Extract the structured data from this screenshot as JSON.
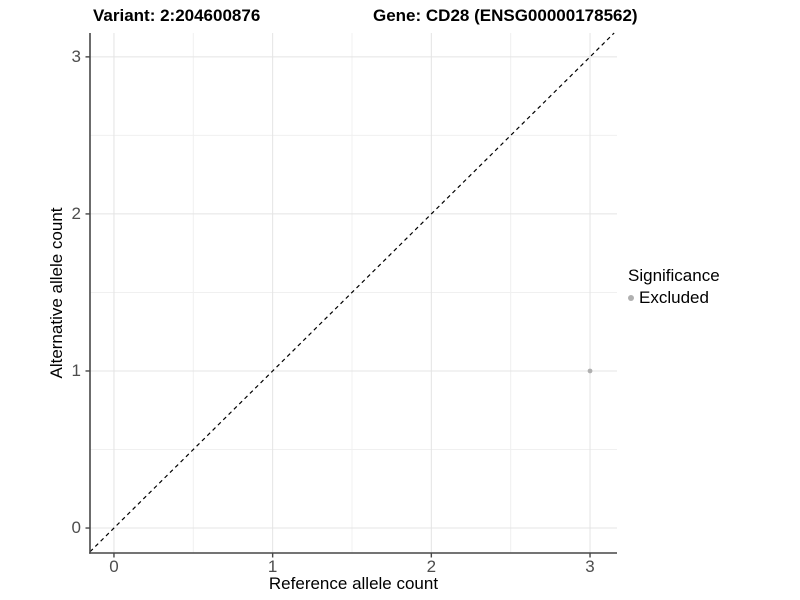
{
  "header": {
    "variant_title": "Variant: 2:204600876",
    "gene_title": "Gene: CD28 (ENSG00000178562)"
  },
  "chart_data": {
    "type": "scatter",
    "xlabel": "Reference allele count",
    "ylabel": "Alternative allele count",
    "xlim": [
      -0.151,
      3.17
    ],
    "ylim": [
      -0.159,
      3.152
    ],
    "x_ticks": [
      0,
      1,
      2,
      3
    ],
    "y_ticks": [
      0,
      1,
      2,
      3
    ],
    "x_minor_ticks": [
      0.5,
      1.5,
      2.5
    ],
    "y_minor_ticks": [
      0.5,
      1.5,
      2.5
    ],
    "grid": "major+minor",
    "reference_line": {
      "type": "identity",
      "slope": 1,
      "intercept": 0,
      "style": "dashed",
      "color": "#000000"
    },
    "series": [
      {
        "name": "Excluded",
        "color": "#b0b0b0",
        "points": [
          [
            3,
            1
          ]
        ]
      }
    ],
    "legend": {
      "title": "Significance",
      "position": "right",
      "items": [
        {
          "label": "Excluded",
          "color": "#b0b0b0"
        }
      ]
    },
    "colors": {
      "grid_major": "#e4e4e4",
      "grid_minor": "#f0f0f0",
      "axis_line": "#474747",
      "tick_text": "#4d4d4d"
    }
  }
}
